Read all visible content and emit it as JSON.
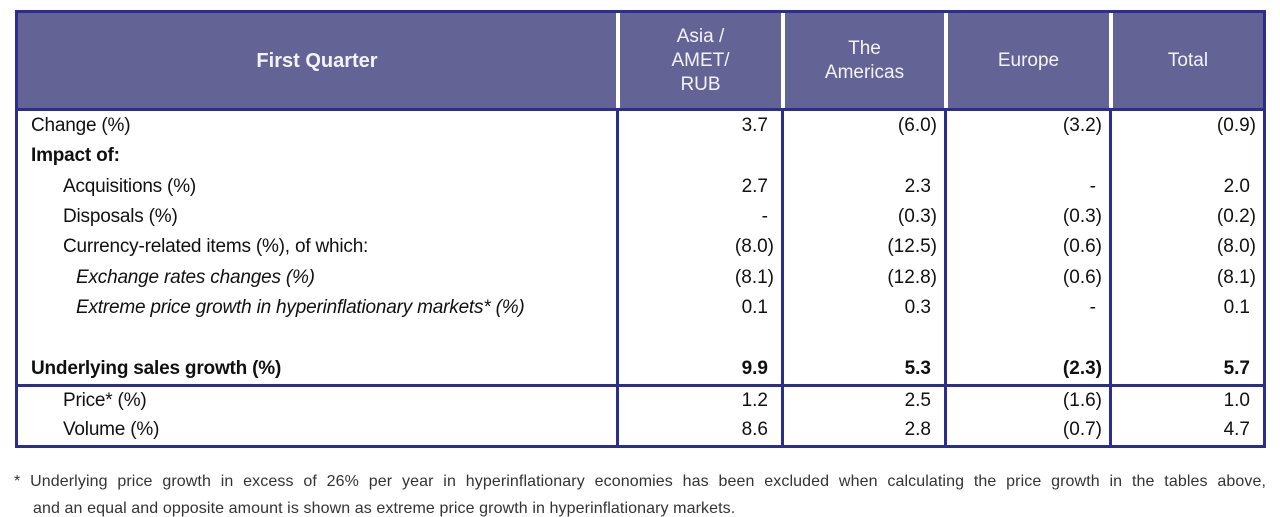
{
  "colors": {
    "header_bg": "#636396",
    "header_text": "#f4f3fb",
    "border_navy": "#2c2e8f"
  },
  "table": {
    "header": {
      "row_label": "First Quarter",
      "columns": [
        "Asia /\nAMET/\nRUB",
        "The\nAmericas",
        "Europe",
        "Total"
      ]
    },
    "rows": [
      {
        "label": "Change (%)",
        "style": "",
        "indent": 0,
        "values": [
          "3.7",
          "(6.0)",
          "(3.2)",
          "(0.9)"
        ]
      },
      {
        "label": "Impact of:",
        "style": "bold",
        "indent": 0,
        "values": [
          "",
          "",
          "",
          ""
        ]
      },
      {
        "label": "Acquisitions (%)",
        "style": "",
        "indent": 1,
        "values": [
          "2.7",
          "2.3",
          "-",
          "2.0"
        ]
      },
      {
        "label": "Disposals (%)",
        "style": "",
        "indent": 1,
        "values": [
          "-",
          "(0.3)",
          "(0.3)",
          "(0.2)"
        ]
      },
      {
        "label": "Currency-related items (%), of which:",
        "style": "",
        "indent": 1,
        "values": [
          "(8.0)",
          "(12.5)",
          "(0.6)",
          "(8.0)"
        ]
      },
      {
        "label": "Exchange rates changes (%)",
        "style": "italic",
        "indent": 2,
        "values": [
          "(8.1)",
          "(12.8)",
          "(0.6)",
          "(8.1)"
        ]
      },
      {
        "label": "Extreme price growth in hyperinflationary markets* (%)",
        "style": "italic",
        "indent": 2,
        "values": [
          "0.1",
          "0.3",
          "-",
          "0.1"
        ]
      },
      {
        "label": "",
        "style": "spacer",
        "indent": 0,
        "values": [
          "",
          "",
          "",
          ""
        ]
      },
      {
        "label": "Underlying sales growth (%)",
        "style": "bold",
        "indent": 0,
        "values": [
          "9.9",
          "5.3",
          "(2.3)",
          "5.7"
        ],
        "bold_values": true
      },
      {
        "label": "Price* (%)",
        "style": "",
        "indent": 1,
        "values": [
          "1.2",
          "2.5",
          "(1.6)",
          "1.0"
        ],
        "section": "bottom"
      },
      {
        "label": "Volume (%)",
        "style": "",
        "indent": 1,
        "values": [
          "8.6",
          "2.8",
          "(0.7)",
          "4.7"
        ],
        "section": "bottom"
      }
    ]
  },
  "footnote": {
    "line1": "* Underlying price growth in excess of 26% per year in hyperinflationary economies has been excluded when calculating the price growth in the tables above,",
    "line2": "and an equal and opposite amount is shown as extreme price growth in hyperinflationary markets."
  }
}
